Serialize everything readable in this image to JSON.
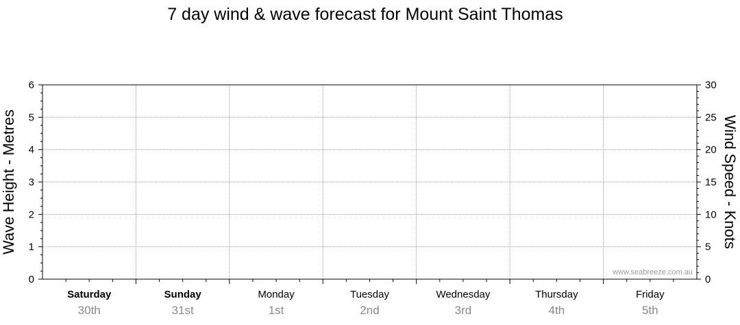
{
  "chart_data": {
    "type": "line",
    "title": "7 day wind & wave forecast for Mount Saint Thomas",
    "ylabel_left": "Wave Height - Metres",
    "ylabel_right": "Wind Speed - Knots",
    "ylim_left": [
      0,
      6
    ],
    "ylim_right": [
      0,
      30
    ],
    "yticks_left": [
      "0",
      "1",
      "2",
      "3",
      "4",
      "5",
      "6"
    ],
    "yticks_right": [
      "0",
      "5",
      "10",
      "15",
      "20",
      "25",
      "30"
    ],
    "grid": true,
    "days": [
      {
        "day": "Saturday",
        "date": "30th",
        "bold": true
      },
      {
        "day": "Sunday",
        "date": "31st",
        "bold": true
      },
      {
        "day": "Monday",
        "date": "1st",
        "bold": false
      },
      {
        "day": "Tuesday",
        "date": "2nd",
        "bold": false
      },
      {
        "day": "Wednesday",
        "date": "3rd",
        "bold": false
      },
      {
        "day": "Thursday",
        "date": "4th",
        "bold": false
      },
      {
        "day": "Friday",
        "date": "5th",
        "bold": false
      }
    ],
    "series": [],
    "watermark": "www.seabreeze.com.au"
  }
}
